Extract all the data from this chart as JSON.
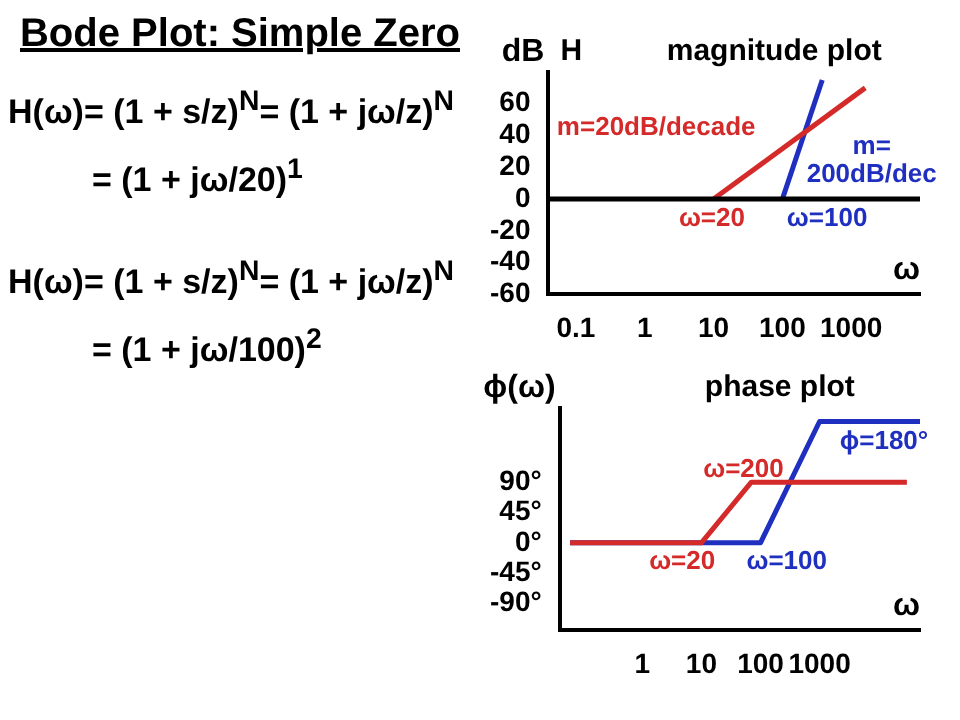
{
  "chart_data": [
    {
      "type": "other",
      "title": "Bode Plot: Simple Zero",
      "annotations": [
        "H(ω)= (1 + s/z)$^{N}$= (1 + jω/z)$^{N}$",
        "= (1 + jω/20)$^{1}$",
        "H(ω)= (1 + s/z)$^{N}$= (1 + jω/z)$^{N}$",
        "= (1 + jω/100)$^{2}$"
      ]
    },
    {
      "type": "line",
      "title": "magnitude plot",
      "xlabel": "ω",
      "ylabel": "dB",
      "log": "x",
      "xlim": [
        0.04,
        10000
      ],
      "xticks": [
        0.1,
        1,
        10,
        100,
        1000
      ],
      "ylim": [
        -60,
        80
      ],
      "yticks": [
        60,
        40,
        20,
        0,
        -20,
        -40,
        -60
      ],
      "series": [
        {
          "color": "#d42a2a",
          "x": [
            10,
            1600
          ],
          "values": [
            0,
            70
          ]
        },
        {
          "color": "#1f2fc0",
          "x": [
            100,
            380
          ],
          "values": [
            0,
            75
          ]
        }
      ],
      "ref_lines": [
        {
          "axis": "y",
          "value": 0,
          "color": "#000000"
        }
      ],
      "annotations": [
        "H",
        "m=20dB/decade",
        "m=\n200dB/dec",
        "ω=20",
        "ω=100"
      ]
    },
    {
      "type": "line",
      "title": "phase plot",
      "xlabel": "ω",
      "ylabel": "ϕ(ω)",
      "log": "x",
      "xlim": [
        0.04,
        50000
      ],
      "xticks": [
        1,
        10,
        100,
        1000
      ],
      "ylim": [
        -130,
        200
      ],
      "yticks": [
        {
          "value": 90,
          "label": "90°"
        },
        {
          "value": 45,
          "label": "45°"
        },
        {
          "value": 0,
          "label": "0°"
        },
        {
          "value": -45,
          "label": "-45°"
        },
        {
          "value": -90,
          "label": "-90°"
        }
      ],
      "series": [
        {
          "color": "#d42a2a",
          "x": [
            0.06,
            10,
            70,
            30000
          ],
          "values": [
            0,
            0,
            90,
            90
          ]
        },
        {
          "color": "#1f2fc0",
          "x": [
            0.06,
            100,
            1000,
            50000
          ],
          "values": [
            0,
            0,
            180,
            180
          ]
        }
      ],
      "annotations": [
        "ω=200",
        "ω=20",
        "ω=100",
        "ϕ=180°"
      ]
    }
  ]
}
